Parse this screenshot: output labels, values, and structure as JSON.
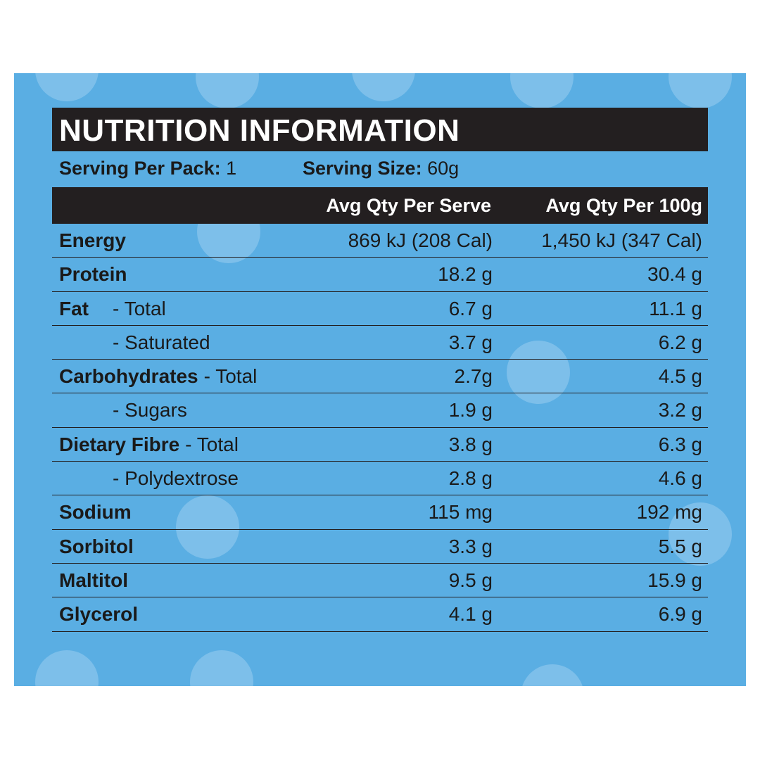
{
  "title": "NUTRITION INFORMATION",
  "serving": [
    {
      "label": "Serving Per Pack:",
      "value": "1"
    },
    {
      "label": "Serving Size:",
      "value": "60g"
    }
  ],
  "table": {
    "columns": [
      "Avg Qty Per Serve",
      "Avg Qty Per 100g"
    ],
    "rows": [
      {
        "name": "Energy",
        "serve": "869 kJ (208 Cal)",
        "per100": "1,450 kJ (347 Cal)"
      },
      {
        "name": "Protein",
        "serve": "18.2 g",
        "per100": "30.4 g"
      },
      {
        "name": "Fat",
        "sub": "- Total",
        "serve": "6.7 g",
        "per100": "11.1 g"
      },
      {
        "sub": "- Saturated",
        "serve": "3.7 g",
        "per100": "6.2 g"
      },
      {
        "name": "Carbohydrates",
        "sub": "- Total",
        "serve": "2.7g",
        "per100": "4.5 g"
      },
      {
        "sub": "- Sugars",
        "serve": "1.9 g",
        "per100": "3.2 g"
      },
      {
        "name": "Dietary Fibre",
        "sub": "- Total",
        "serve": "3.8 g",
        "per100": "6.3 g"
      },
      {
        "sub": "- Polydextrose",
        "serve": "2.8 g",
        "per100": "4.6 g"
      },
      {
        "name": "Sodium",
        "serve": "115 mg",
        "per100": "192 mg"
      },
      {
        "name": "Sorbitol",
        "serve": "3.3 g",
        "per100": "5.5 g"
      },
      {
        "name": "Maltitol",
        "serve": "9.5 g",
        "per100": "15.9 g"
      },
      {
        "name": "Glycerol",
        "serve": "4.1 g",
        "per100": "6.9 g"
      }
    ]
  }
}
